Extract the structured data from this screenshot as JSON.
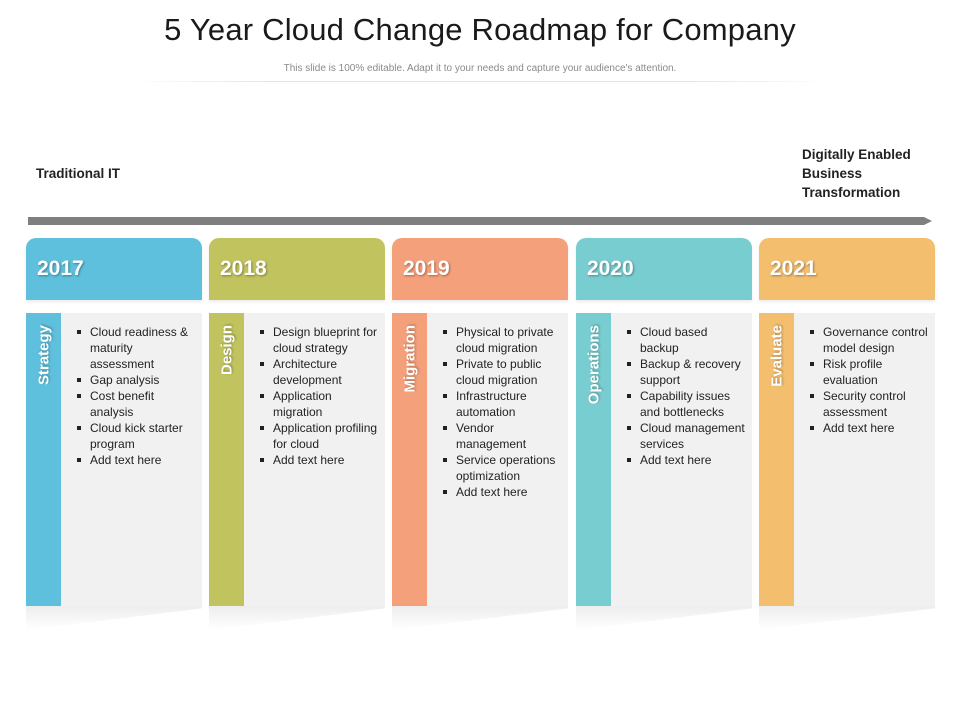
{
  "title": "5 Year Cloud Change Roadmap for Company",
  "subtitle": "This slide is 100% editable. Adapt it to your needs and capture your audience's attention.",
  "timeline": {
    "start_label": "Traditional IT",
    "end_label": "Digitally Enabled Business Transformation",
    "arrow_color": "#7f7f7f"
  },
  "columns": [
    {
      "year": "2017",
      "phase": "Strategy",
      "color": "#5ec0dc",
      "items": [
        "Cloud readiness & maturity assessment",
        "Gap analysis",
        "Cost benefit analysis",
        "Cloud kick starter program",
        "Add text here"
      ]
    },
    {
      "year": "2018",
      "phase": "Design",
      "color": "#c1c35f",
      "items": [
        "Design blueprint for cloud strategy",
        "Architecture development",
        "Application migration",
        "Application profiling for cloud",
        "Add text here"
      ]
    },
    {
      "year": "2019",
      "phase": "Migration",
      "color": "#f4a07a",
      "items": [
        "Physical to private cloud migration",
        "Private to public cloud migration",
        "Infrastructure automation",
        "Vendor management",
        "Service operations optimization",
        "Add text here"
      ]
    },
    {
      "year": "2020",
      "phase": "Operations",
      "color": "#78cdd0",
      "items": [
        "Cloud based backup",
        "Backup & recovery support",
        "Capability issues and bottlenecks",
        "Cloud management services",
        "Add text here"
      ]
    },
    {
      "year": "2021",
      "phase": "Evaluate",
      "color": "#f3be6e",
      "items": [
        "Governance control model design",
        "Risk profile evaluation",
        "Security control assessment",
        "Add text here"
      ]
    }
  ]
}
